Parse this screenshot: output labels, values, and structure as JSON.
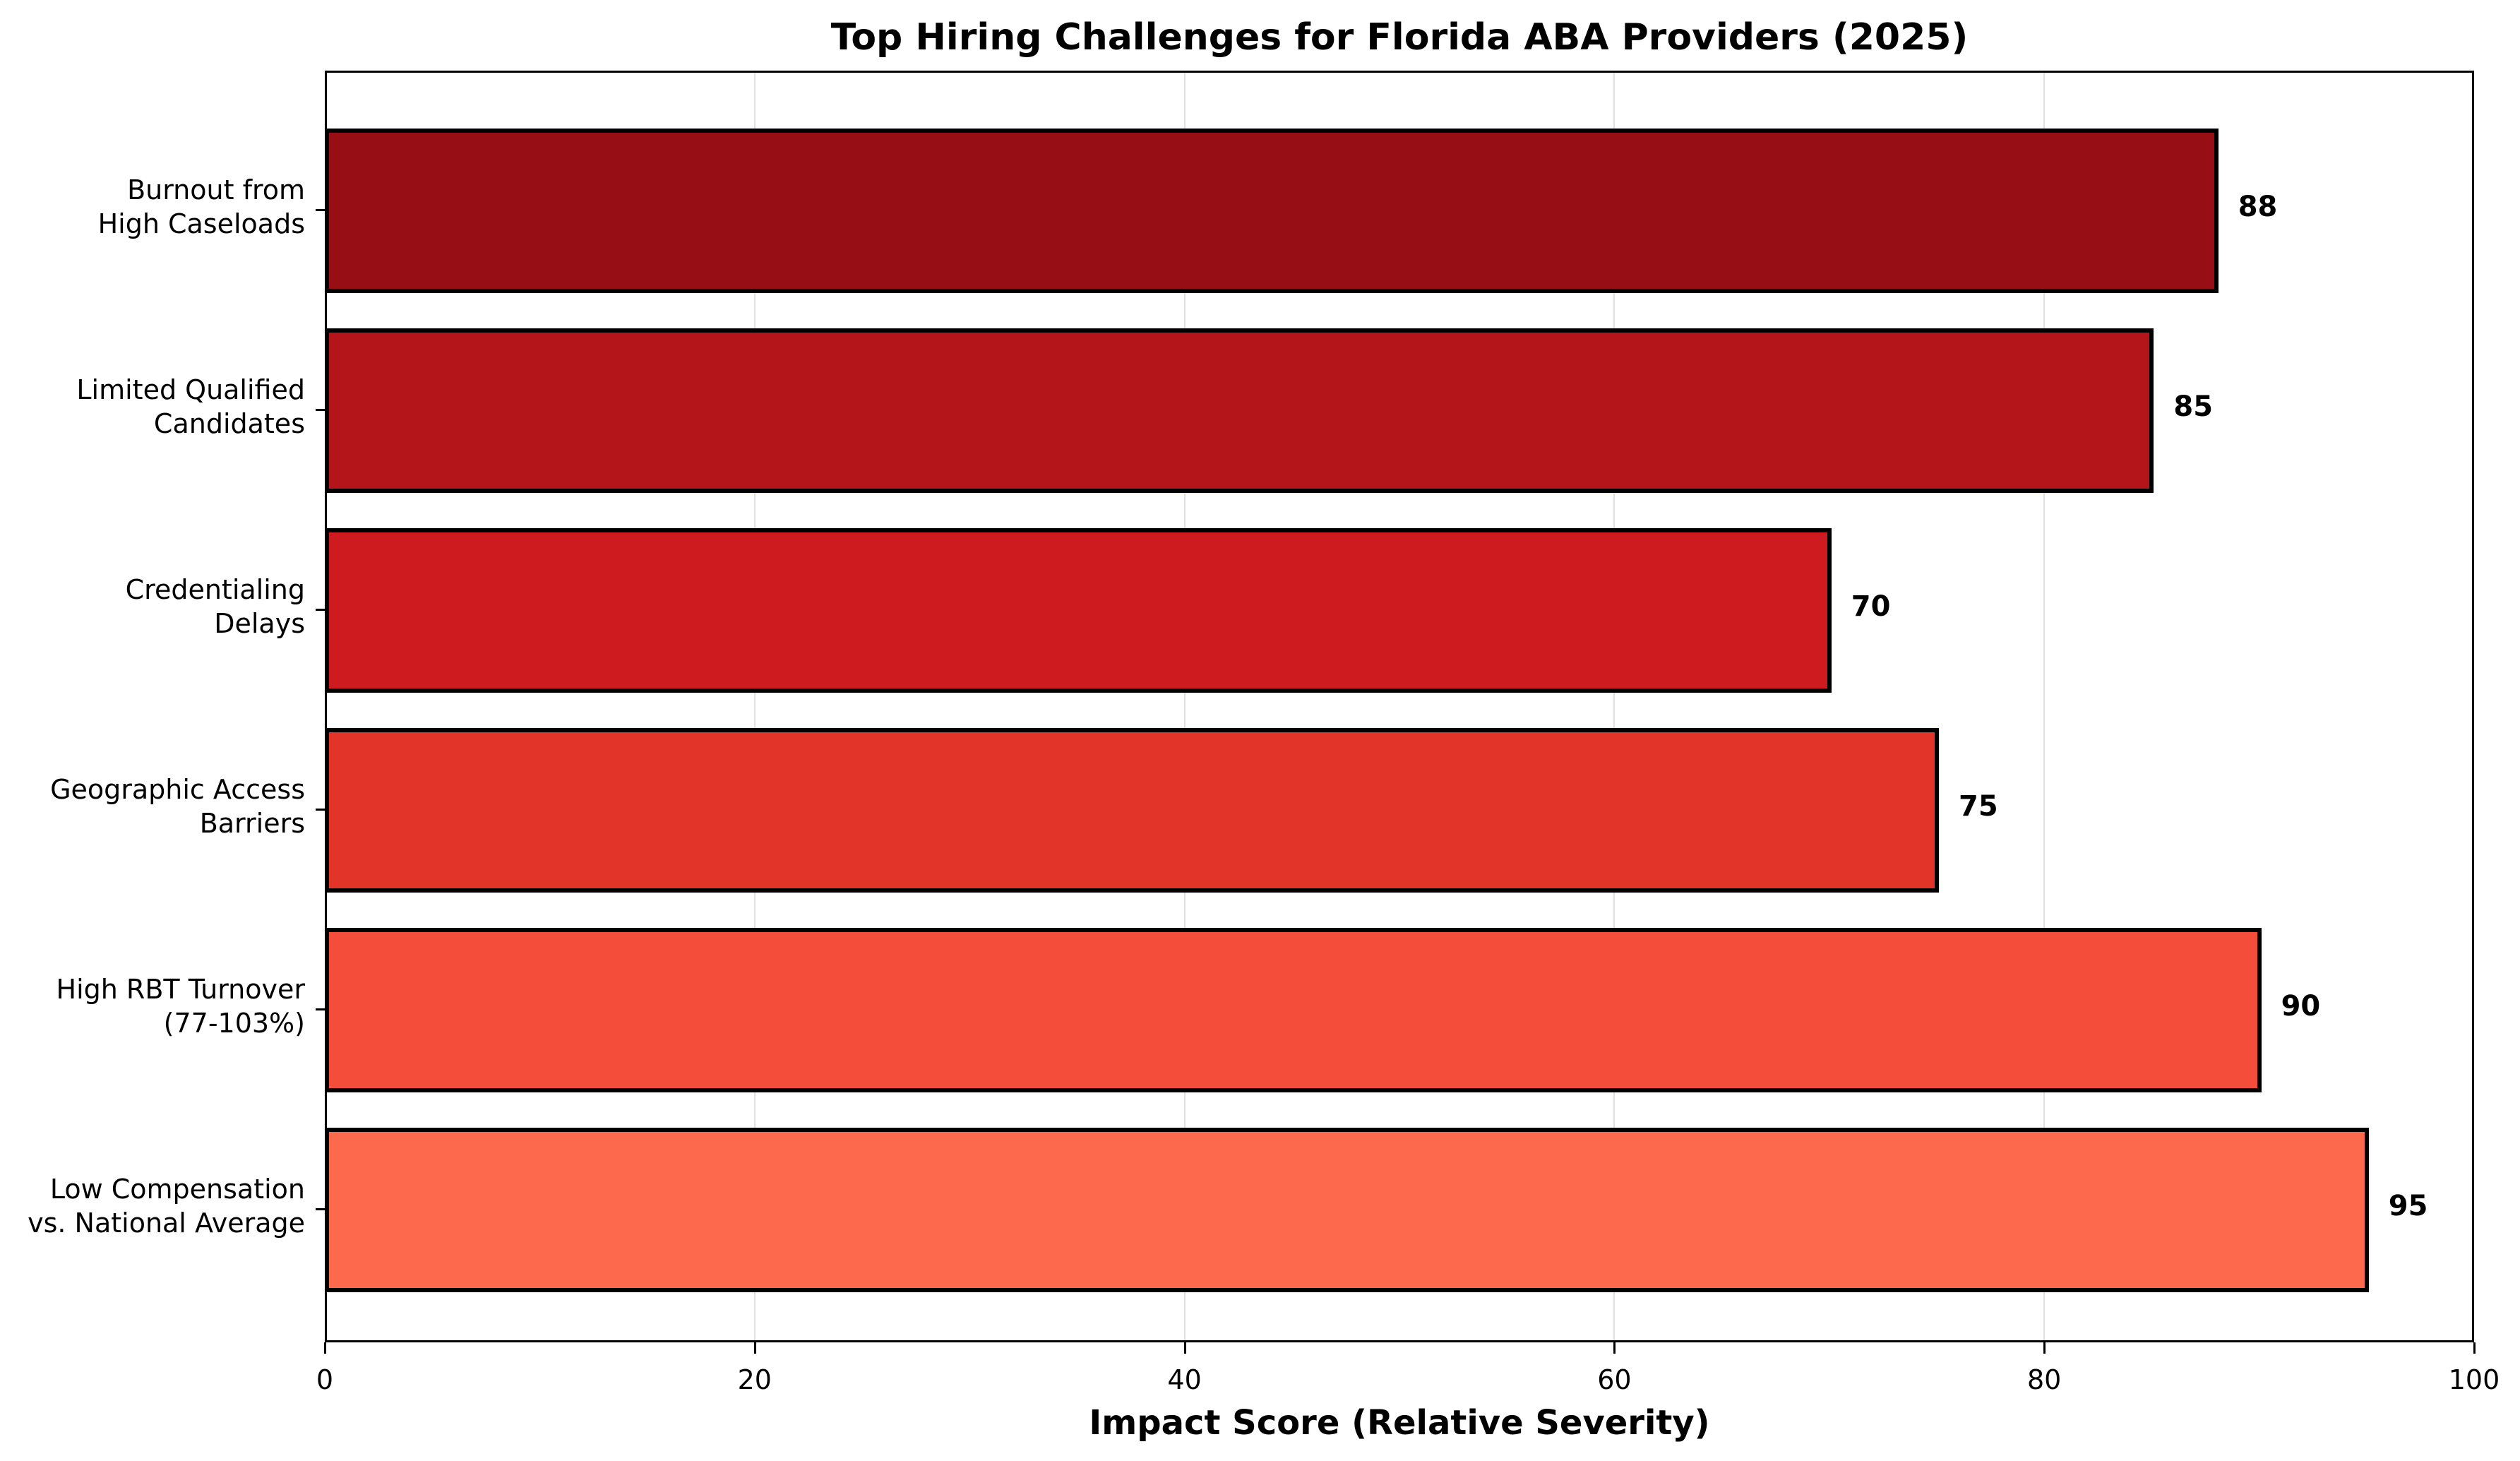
{
  "chart_data": {
    "type": "bar",
    "orientation": "horizontal",
    "title": "Top Hiring Challenges for Florida ABA Providers (2025)",
    "xlabel": "Impact Score (Relative Severity)",
    "ylabel": "",
    "xlim": [
      0,
      100
    ],
    "xticks": [
      "0",
      "20",
      "40",
      "60",
      "80",
      "100"
    ],
    "grid": "x",
    "legend": null,
    "categories": [
      "Burnout from\nHigh Caseloads",
      "Limited Qualified\nCandidates",
      "Credentialing\nDelays",
      "Geographic Access\nBarriers",
      "High RBT Turnover\n(77-103%)",
      "Low Compensation\nvs. National Average"
    ],
    "values": [
      88,
      85,
      70,
      75,
      90,
      95
    ],
    "value_labels": [
      "88",
      "85",
      "70",
      "75",
      "90",
      "95"
    ],
    "colors": [
      "#970E15",
      "#B4151A",
      "#CD1B20",
      "#E23428",
      "#F44E3A",
      "#FC694D"
    ]
  }
}
